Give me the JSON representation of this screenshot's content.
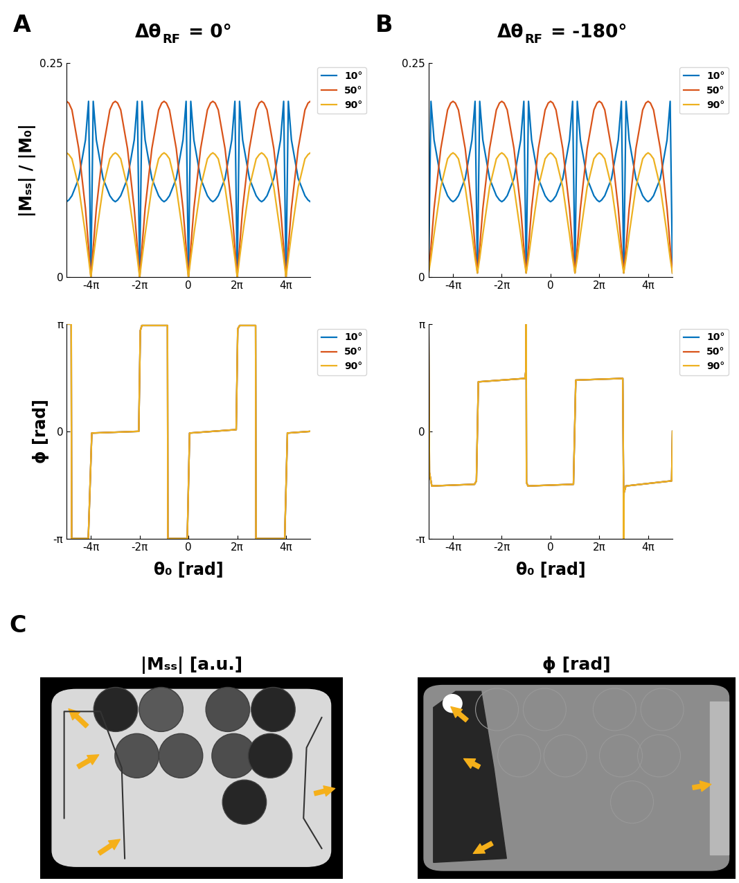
{
  "chart_data": [
    {
      "type": "line",
      "label": "A",
      "title": {
        "text": "Δθ",
        "subscript": "RF",
        "after": " = 0°"
      },
      "ylabel": "|Mₛₛ| / |M₀|",
      "x": [
        -15.708,
        -15.408,
        -15.008,
        -14.1372,
        -13.2664,
        -12.8664,
        -12.5664,
        -12.2664,
        -11.8664,
        -10.9956,
        -10.1248,
        -9.7248,
        -9.4248,
        -9.1248,
        -8.7248,
        -7.854,
        -6.9832,
        -6.5832,
        -6.2832,
        -5.9832,
        -5.5832,
        -4.7124,
        -3.8416,
        -3.4416,
        -3.1416,
        -2.8416,
        -2.4416,
        -1.5708,
        -0.7,
        -0.3,
        0,
        0.3,
        0.7,
        1.5708,
        2.4416,
        2.8416,
        3.1416,
        3.4416,
        3.8416,
        4.7124,
        5.5832,
        5.9832,
        6.2832,
        6.5832,
        6.9832,
        7.854,
        8.7248,
        9.1248,
        9.4248,
        9.7248,
        10.1248,
        10.9956,
        11.8664,
        12.2664,
        12.5664,
        12.8664,
        13.2664,
        14.1372,
        15.008,
        15.408,
        15.708
      ],
      "series": [
        {
          "name": "10°",
          "color": "#0072BD",
          "values": [
            0.088,
            0.09,
            0.095,
            0.115,
            0.16,
            0.205,
            0,
            0.205,
            0.16,
            0.115,
            0.095,
            0.09,
            0.088,
            0.09,
            0.095,
            0.115,
            0.16,
            0.205,
            0,
            0.205,
            0.16,
            0.115,
            0.095,
            0.09,
            0.088,
            0.09,
            0.095,
            0.115,
            0.16,
            0.205,
            0,
            0.205,
            0.16,
            0.115,
            0.095,
            0.09,
            0.088,
            0.09,
            0.095,
            0.115,
            0.16,
            0.205,
            0,
            0.205,
            0.16,
            0.115,
            0.095,
            0.09,
            0.088,
            0.09,
            0.095,
            0.115,
            0.16,
            0.205,
            0,
            0.205,
            0.16,
            0.115,
            0.095,
            0.09,
            0.088
          ]
        },
        {
          "name": "50°",
          "color": "#D95319",
          "values": [
            0.205,
            0.203,
            0.195,
            0.15,
            0.08,
            0.035,
            0,
            0.035,
            0.08,
            0.15,
            0.195,
            0.203,
            0.205,
            0.203,
            0.195,
            0.15,
            0.08,
            0.035,
            0,
            0.035,
            0.08,
            0.15,
            0.195,
            0.203,
            0.205,
            0.203,
            0.195,
            0.15,
            0.08,
            0.035,
            0,
            0.035,
            0.08,
            0.15,
            0.195,
            0.203,
            0.205,
            0.203,
            0.195,
            0.15,
            0.08,
            0.035,
            0,
            0.035,
            0.08,
            0.15,
            0.195,
            0.203,
            0.205,
            0.203,
            0.195,
            0.15,
            0.08,
            0.035,
            0,
            0.035,
            0.08,
            0.15,
            0.195,
            0.203,
            0.205
          ]
        },
        {
          "name": "90°",
          "color": "#EDB120",
          "values": [
            0.145,
            0.143,
            0.138,
            0.105,
            0.05,
            0.022,
            0,
            0.022,
            0.05,
            0.105,
            0.138,
            0.143,
            0.145,
            0.143,
            0.138,
            0.105,
            0.05,
            0.022,
            0,
            0.022,
            0.05,
            0.105,
            0.138,
            0.143,
            0.145,
            0.143,
            0.138,
            0.105,
            0.05,
            0.022,
            0,
            0.022,
            0.05,
            0.105,
            0.138,
            0.143,
            0.145,
            0.143,
            0.138,
            0.105,
            0.05,
            0.022,
            0,
            0.022,
            0.05,
            0.105,
            0.138,
            0.143,
            0.145,
            0.143,
            0.138,
            0.105,
            0.05,
            0.022,
            0,
            0.022,
            0.05,
            0.105,
            0.138,
            0.143,
            0.145
          ]
        }
      ],
      "xlim": [
        -15.708,
        15.708
      ],
      "xticks": [
        {
          "value": -12.566,
          "label": "-4π"
        },
        {
          "value": -6.283,
          "label": "-2π"
        },
        0,
        {
          "value": 6.283,
          "label": "2π"
        },
        {
          "value": 12.566,
          "label": "4π"
        }
      ],
      "ylim": [
        0,
        0.25
      ],
      "yticks": [
        0,
        0.25
      ],
      "legend": "upper right"
    },
    {
      "type": "line",
      "ylabel": "ϕ [rad]",
      "xlabel": "θ₀ [rad]",
      "x": [
        -15.708,
        -15.1,
        -15.05,
        -12.9,
        -12.45,
        -6.4,
        -6.2,
        -6.0,
        -2.7,
        -2.65,
        -0.15,
        0.15,
        6.15,
        6.35,
        6.6,
        8.65,
        8.7,
        12.4,
        12.75,
        15.708
      ],
      "series": [
        {
          "name": "10°",
          "color": "#0072BD",
          "values": [
            3.1416,
            3.1416,
            -3.1416,
            -3.1416,
            -0.05,
            0.0,
            2.95,
            3.1,
            3.1,
            -3.1416,
            -3.1416,
            -0.05,
            0.05,
            3.0,
            3.1,
            3.1,
            -3.1416,
            -3.1416,
            -0.05,
            0.0
          ]
        },
        {
          "name": "50°",
          "color": "#D95319",
          "values": [
            3.1416,
            3.1416,
            -3.1416,
            -3.1416,
            -0.05,
            0.0,
            2.95,
            3.1,
            3.1,
            -3.1416,
            -3.1416,
            -0.05,
            0.05,
            3.0,
            3.1,
            3.1,
            -3.1416,
            -3.1416,
            -0.05,
            0.0
          ]
        },
        {
          "name": "90°",
          "color": "#EDB120",
          "values": [
            3.1416,
            3.1416,
            -3.1416,
            -3.1416,
            -0.05,
            0.0,
            2.95,
            3.1,
            3.1,
            -3.1416,
            -3.1416,
            -0.05,
            0.05,
            3.0,
            3.1,
            3.1,
            -3.1416,
            -3.1416,
            -0.05,
            0.0
          ]
        }
      ],
      "xlim": [
        -15.708,
        15.708
      ],
      "xticks": [
        {
          "value": -12.566,
          "label": "-4π"
        },
        {
          "value": -6.283,
          "label": "-2π"
        },
        0,
        {
          "value": 6.283,
          "label": "2π"
        },
        {
          "value": 12.566,
          "label": "4π"
        }
      ],
      "ylim": [
        -3.1416,
        3.1416
      ],
      "yticks": [
        {
          "value": -3.1416,
          "label": "-π"
        },
        0,
        {
          "value": 3.1416,
          "label": "π"
        }
      ],
      "legend": "upper right"
    },
    {
      "type": "line",
      "label": "B",
      "title": {
        "text": "Δθ",
        "subscript": "RF",
        "after": " = -180°"
      },
      "x": [
        -15.708,
        -15.408,
        -15.008,
        -14.1372,
        -13.2664,
        -12.8664,
        -12.5664,
        -12.2664,
        -11.8664,
        -10.9956,
        -10.1248,
        -9.7248,
        -9.4248,
        -9.1248,
        -8.7248,
        -7.854,
        -6.9832,
        -6.5832,
        -6.2832,
        -5.9832,
        -5.5832,
        -4.7124,
        -3.8416,
        -3.4416,
        -3.1416,
        -2.8416,
        -2.4416,
        -1.5708,
        -0.7,
        -0.3,
        0,
        0.3,
        0.7,
        1.5708,
        2.4416,
        2.8416,
        3.1416,
        3.4416,
        3.8416,
        4.7124,
        5.5832,
        5.9832,
        6.2832,
        6.5832,
        6.9832,
        7.854,
        8.7248,
        9.1248,
        9.4248,
        9.7248,
        10.1248,
        10.9956,
        11.8664,
        12.2664,
        12.5664,
        12.8664,
        13.2664,
        14.1372,
        15.008,
        15.408,
        15.708
      ],
      "series": [
        {
          "name": "10°",
          "color": "#0072BD",
          "values": [
            0.005,
            0.205,
            0.16,
            0.115,
            0.095,
            0.09,
            0.088,
            0.09,
            0.095,
            0.115,
            0.16,
            0.205,
            0.005,
            0.205,
            0.16,
            0.115,
            0.095,
            0.09,
            0.088,
            0.09,
            0.095,
            0.115,
            0.16,
            0.205,
            0.005,
            0.205,
            0.16,
            0.115,
            0.095,
            0.09,
            0.088,
            0.09,
            0.095,
            0.115,
            0.16,
            0.205,
            0.005,
            0.205,
            0.16,
            0.115,
            0.095,
            0.09,
            0.088,
            0.09,
            0.095,
            0.115,
            0.16,
            0.205,
            0.005,
            0.205,
            0.16,
            0.115,
            0.095,
            0.09,
            0.088,
            0.09,
            0.095,
            0.115,
            0.16,
            0.205,
            0.005
          ]
        },
        {
          "name": "50°",
          "color": "#D95319",
          "values": [
            0.005,
            0.035,
            0.08,
            0.15,
            0.195,
            0.203,
            0.205,
            0.203,
            0.195,
            0.15,
            0.08,
            0.035,
            0.005,
            0.035,
            0.08,
            0.15,
            0.195,
            0.203,
            0.205,
            0.203,
            0.195,
            0.15,
            0.08,
            0.035,
            0.005,
            0.035,
            0.08,
            0.15,
            0.195,
            0.203,
            0.205,
            0.203,
            0.195,
            0.15,
            0.08,
            0.035,
            0.005,
            0.035,
            0.08,
            0.15,
            0.195,
            0.203,
            0.205,
            0.203,
            0.195,
            0.15,
            0.08,
            0.035,
            0.005,
            0.035,
            0.08,
            0.15,
            0.195,
            0.203,
            0.205,
            0.203,
            0.195,
            0.15,
            0.08,
            0.035,
            0.005
          ]
        },
        {
          "name": "90°",
          "color": "#EDB120",
          "values": [
            0.005,
            0.022,
            0.05,
            0.105,
            0.138,
            0.143,
            0.145,
            0.143,
            0.138,
            0.105,
            0.05,
            0.022,
            0.005,
            0.022,
            0.05,
            0.105,
            0.138,
            0.143,
            0.145,
            0.143,
            0.138,
            0.105,
            0.05,
            0.022,
            0.005,
            0.022,
            0.05,
            0.105,
            0.138,
            0.143,
            0.145,
            0.143,
            0.138,
            0.105,
            0.05,
            0.022,
            0.005,
            0.022,
            0.05,
            0.105,
            0.138,
            0.143,
            0.145,
            0.143,
            0.138,
            0.105,
            0.05,
            0.022,
            0.005,
            0.022,
            0.05,
            0.105,
            0.138,
            0.143,
            0.145,
            0.143,
            0.138,
            0.105,
            0.05,
            0.022,
            0.005
          ]
        }
      ],
      "xlim": [
        -15.708,
        15.708
      ],
      "xticks": [
        {
          "value": -12.566,
          "label": "-4π"
        },
        {
          "value": -6.283,
          "label": "-2π"
        },
        0,
        {
          "value": 6.283,
          "label": "2π"
        },
        {
          "value": 12.566,
          "label": "4π"
        }
      ],
      "ylim": [
        0,
        0.25
      ],
      "yticks": [
        0,
        0.25
      ],
      "legend": "upper right"
    },
    {
      "type": "line",
      "xlabel": "θ₀ [rad]",
      "x": [
        -15.708,
        -15.6,
        -15.3,
        -9.8,
        -9.55,
        -9.3,
        -3.3,
        -3.16,
        -3.1416,
        -3.1,
        -2.9,
        2.95,
        3.25,
        9.3,
        9.4,
        9.4248,
        9.46,
        9.7,
        15.6,
        15.708
      ],
      "series": [
        {
          "name": "10°",
          "color": "#0072BD",
          "values": [
            3.1416,
            -1.2,
            -1.6,
            -1.55,
            -1.45,
            1.45,
            1.55,
            1.8,
            3.1416,
            -1.5,
            -1.6,
            -1.55,
            1.5,
            1.55,
            -1.5,
            -3.1416,
            -1.8,
            -1.6,
            -1.45,
            0
          ]
        },
        {
          "name": "50°",
          "color": "#D95319",
          "values": [
            3.1416,
            -1.2,
            -1.6,
            -1.55,
            -1.45,
            1.45,
            1.55,
            1.8,
            3.1416,
            -1.5,
            -1.6,
            -1.55,
            1.5,
            1.55,
            -1.5,
            -3.1416,
            -1.8,
            -1.6,
            -1.45,
            0
          ]
        },
        {
          "name": "90°",
          "color": "#EDB120",
          "values": [
            3.1416,
            -1.2,
            -1.6,
            -1.55,
            -1.45,
            1.45,
            1.55,
            1.8,
            3.1416,
            -1.5,
            -1.6,
            -1.55,
            1.5,
            1.55,
            -1.5,
            -3.1416,
            -1.8,
            -1.6,
            -1.45,
            0
          ]
        }
      ],
      "xlim": [
        -15.708,
        15.708
      ],
      "xticks": [
        {
          "value": -12.566,
          "label": "-4π"
        },
        {
          "value": -6.283,
          "label": "-2π"
        },
        0,
        {
          "value": 6.283,
          "label": "2π"
        },
        {
          "value": 12.566,
          "label": "4π"
        }
      ],
      "ylim": [
        -3.1416,
        3.1416
      ],
      "yticks": [
        {
          "value": -3.1416,
          "label": "-π"
        },
        0,
        {
          "value": 3.1416,
          "label": "π"
        }
      ],
      "legend": "upper right"
    }
  ],
  "images": {
    "label": "C",
    "panels": [
      {
        "title": "|Mₛₛ| [a.u.]"
      },
      {
        "title": "ϕ [rad]"
      }
    ]
  }
}
